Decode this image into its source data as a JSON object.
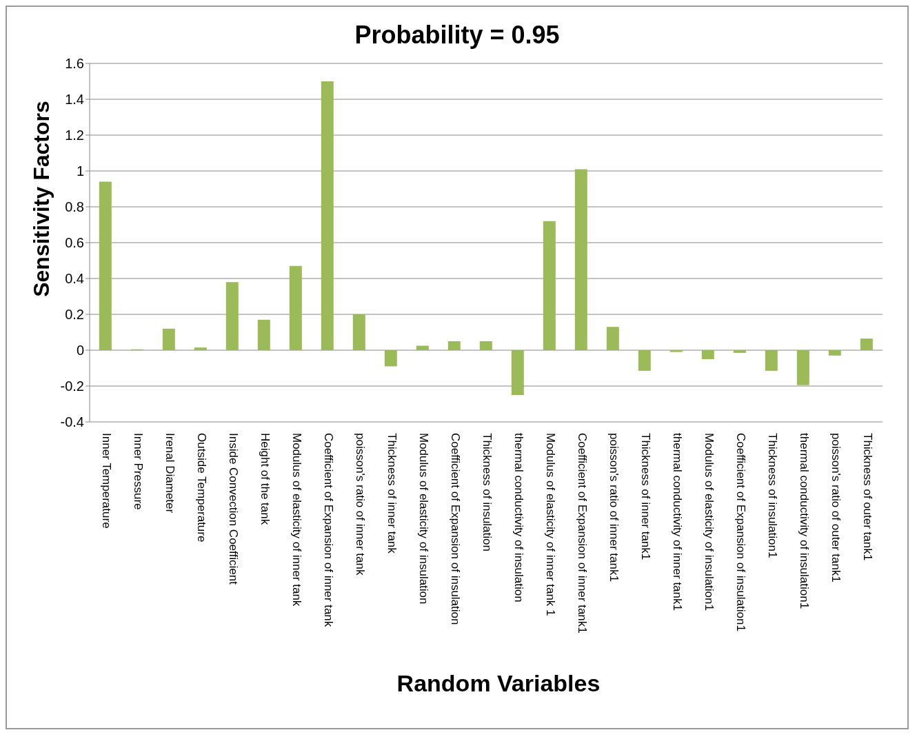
{
  "chart_data": {
    "type": "bar",
    "title": "Probability = 0.95",
    "xlabel": "Random Variables",
    "ylabel": "Sensitivity Factors",
    "categories": [
      "Inner Temperature",
      "Inner Pressure",
      "Irenal Diameter",
      "Outside Temperature",
      "Inside Convection Coefficient",
      "Height of the tank",
      "Modulus of elasticity of inner tank",
      "Coefficient of Expansion of inner tank",
      "poisson's ratio of inner tank",
      "Thickness of inner tank",
      "Modulus of elasticity of insulation",
      "Coefficient of Expansion of insulation",
      "Thickness of insulation",
      "thermal conductivity of insulation",
      "Modulus of elasticity of inner tank 1",
      "Coefficient of Expansion of inner tank1",
      "poisson's ratio of inner tank1",
      "Thickness of inner tank1",
      "thermal conductivity of inner tank1",
      "Modulus of elasticity of insulation1",
      "Coefficient of Expansion of insulation1",
      "Thickness of insulation1",
      "thermal conductivity of insulation1",
      "poisson's ratio of outer tank1",
      "Thickness of outer tank1"
    ],
    "values": [
      0.94,
      0.005,
      0.12,
      0.015,
      0.38,
      0.17,
      0.47,
      1.5,
      0.2,
      -0.09,
      0.025,
      0.05,
      0.05,
      -0.25,
      0.72,
      1.01,
      0.13,
      -0.115,
      -0.01,
      -0.05,
      -0.015,
      -0.115,
      -0.195,
      -0.03,
      0.065
    ],
    "color": "#9bbb59",
    "ylim": [
      -0.4,
      1.6
    ],
    "yticks": [
      -0.4,
      -0.2,
      0,
      0.2,
      0.4,
      0.6,
      0.8,
      1,
      1.2,
      1.4,
      1.6
    ],
    "grid": "y"
  }
}
